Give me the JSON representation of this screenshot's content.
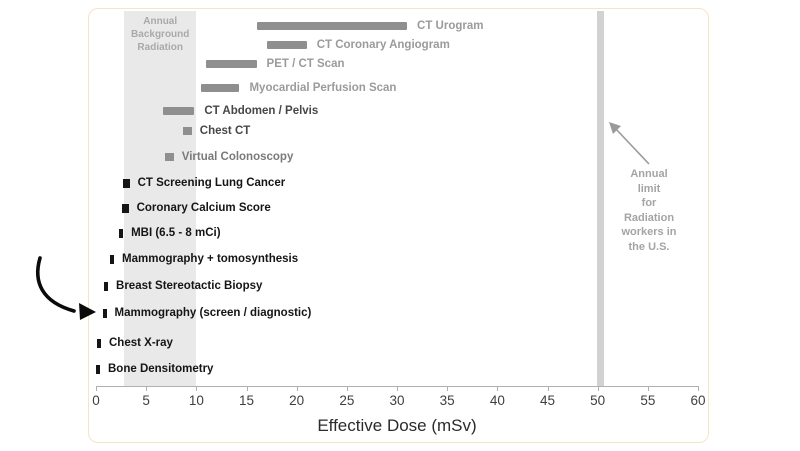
{
  "chart_data": {
    "type": "bar",
    "orientation": "horizontal",
    "title": "",
    "xlabel": "Effective Dose (mSv)",
    "xlim": [
      0,
      60
    ],
    "x_ticks": [
      "0",
      "5",
      "10",
      "15",
      "20",
      "25",
      "30",
      "35",
      "40",
      "45",
      "50",
      "55",
      "60"
    ],
    "grid": false,
    "rows": [
      {
        "label": "CT Urogram",
        "dose_mSv": [
          16,
          31
        ],
        "mark": "range",
        "tone": "gray"
      },
      {
        "label": "CT Coronary Angiogram",
        "dose_mSv": [
          17,
          21
        ],
        "mark": "range",
        "tone": "gray"
      },
      {
        "label": "PET / CT Scan",
        "dose_mSv": [
          11,
          16
        ],
        "mark": "range",
        "tone": "gray"
      },
      {
        "label": "Myocardial Perfusion Scan",
        "dose_mSv": [
          10.5,
          14.3
        ],
        "mark": "range",
        "tone": "gray"
      },
      {
        "label": "CT Abdomen / Pelvis",
        "dose_mSv": [
          6.7,
          9.8
        ],
        "mark": "range",
        "tone": "dark"
      },
      {
        "label": "Chest CT",
        "dose_mSv": [
          9.1
        ],
        "mark": "square-gray",
        "tone": "dark"
      },
      {
        "label": "Virtual Colonoscopy",
        "dose_mSv": [
          7.3
        ],
        "mark": "square-gray",
        "tone": "mid"
      },
      {
        "label": "CT Screening Lung Cancer",
        "dose_mSv": [
          3.0
        ],
        "mark": "square-black",
        "tone": "black"
      },
      {
        "label": "Coronary Calcium Score",
        "dose_mSv": [
          2.9
        ],
        "mark": "square-black",
        "tone": "black"
      },
      {
        "label": "MBI (6.5 - 8 mCi)",
        "dose_mSv": [
          2.5
        ],
        "mark": "tick-black",
        "tone": "black"
      },
      {
        "label": "Mammography + tomosynthesis",
        "dose_mSv": [
          1.6
        ],
        "mark": "tick-black",
        "tone": "black"
      },
      {
        "label": "Breast Stereotactic Biopsy",
        "dose_mSv": [
          1.0
        ],
        "mark": "tick-black",
        "tone": "black"
      },
      {
        "label": "Mammography (screen / diagnostic)",
        "dose_mSv": [
          0.85
        ],
        "mark": "tick-black",
        "tone": "black",
        "pointed_by_hand_arrow": true
      },
      {
        "label": "Chest X-ray",
        "dose_mSv": [
          0.3
        ],
        "mark": "tick-black",
        "tone": "black"
      },
      {
        "label": "Bone Densitometry",
        "dose_mSv": [
          0.2
        ],
        "mark": "tick-black",
        "tone": "black"
      }
    ],
    "annotations": {
      "background_band": {
        "label": "Annual Background Radiation",
        "lines": "Annual\nBackground\nRadiation",
        "range_mSv": [
          2.8,
          10
        ]
      },
      "worker_limit": {
        "label": "Annual limit for Radiation workers in the U.S.",
        "lines": "Annual limit\nfor\nRadiation\nworkers in\nthe U.S.",
        "value_mSv": 50.3
      }
    },
    "colors": {
      "bar": "#8f8f8f",
      "band_fill": "#e9e9e9",
      "band_text": "#a9a9a9",
      "limit_bar": "#d2d2d2",
      "annotation_text": "#a4a4a4",
      "annotation_arrow": "#9a9a9a",
      "axis": "#b0b0b0",
      "gray_text": "#9b9b9b",
      "dark_text": "#474747",
      "mid_text": "#7a7a7a",
      "black_text": "#151515",
      "hand_arrow": "#0a0a0a"
    }
  }
}
